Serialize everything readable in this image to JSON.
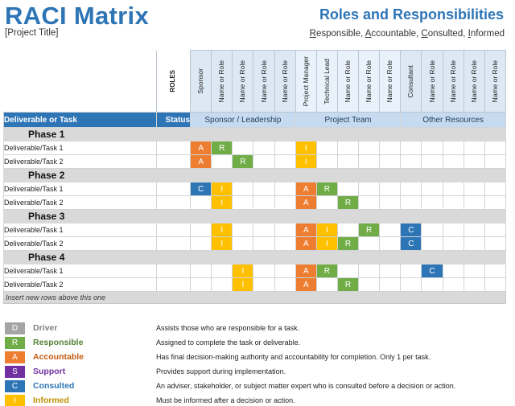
{
  "header": {
    "title": "RACI Matrix",
    "project": "[Project Title]",
    "subtitle": "Roles and Responsibilities",
    "letters": [
      {
        "first": "R",
        "rest": "esponsible, "
      },
      {
        "first": "A",
        "rest": "ccountable, "
      },
      {
        "first": "C",
        "rest": "onsulted, "
      },
      {
        "first": "I",
        "rest": "nformed"
      }
    ]
  },
  "table": {
    "roles_label": "ROLES",
    "roles": [
      "Sponsor",
      "Name or Role",
      "Name or Role",
      "Name or Role",
      "Name or Role",
      "Project Manager",
      "Technical Lead",
      "Name or Role",
      "Name or Role",
      "Name or Role",
      "Consultant",
      "Name or Role",
      "Name or Role",
      "Name or Role",
      "Name or Role"
    ],
    "deliverable_label": "Deliverable or Task",
    "status_label": "Status",
    "groups": [
      "Sponsor / Leadership",
      "Project Team",
      "Other Resources"
    ],
    "phases": [
      {
        "name": "Phase 1",
        "tasks": [
          {
            "label": "Deliverable/Task 1",
            "cells": [
              "A",
              "R",
              "",
              "",
              "",
              "I",
              "",
              "",
              "",
              "",
              "",
              "",
              "",
              "",
              ""
            ]
          },
          {
            "label": "Deliverable/Task 2",
            "cells": [
              "A",
              "",
              "R",
              "",
              "",
              "I",
              "",
              "",
              "",
              "",
              "",
              "",
              "",
              "",
              ""
            ]
          }
        ]
      },
      {
        "name": "Phase 2",
        "tasks": [
          {
            "label": "Deliverable/Task 1",
            "cells": [
              "C",
              "I",
              "",
              "",
              "",
              "A",
              "R",
              "",
              "",
              "",
              "",
              "",
              "",
              "",
              ""
            ]
          },
          {
            "label": "Deliverable/Task 2",
            "cells": [
              "",
              "I",
              "",
              "",
              "",
              "A",
              "",
              "R",
              "",
              "",
              "",
              "",
              "",
              "",
              ""
            ]
          }
        ]
      },
      {
        "name": "Phase 3",
        "tasks": [
          {
            "label": "Deliverable/Task 1",
            "cells": [
              "",
              "I",
              "",
              "",
              "",
              "A",
              "I",
              "",
              "R",
              "",
              "C",
              "",
              "",
              "",
              ""
            ]
          },
          {
            "label": "Deliverable/Task 2",
            "cells": [
              "",
              "I",
              "",
              "",
              "",
              "A",
              "I",
              "R",
              "",
              "",
              "C",
              "",
              "",
              "",
              ""
            ]
          }
        ]
      },
      {
        "name": "Phase 4",
        "tasks": [
          {
            "label": "Deliverable/Task 1",
            "cells": [
              "",
              "",
              "I",
              "",
              "",
              "A",
              "R",
              "",
              "",
              "",
              "",
              "C",
              "",
              "",
              ""
            ]
          },
          {
            "label": "Deliverable/Task 2",
            "cells": [
              "",
              "",
              "I",
              "",
              "",
              "A",
              "",
              "R",
              "",
              "",
              "",
              "",
              "",
              "",
              ""
            ]
          }
        ]
      }
    ],
    "insert_note": "Insert new rows above this one"
  },
  "legend": [
    {
      "letter": "D",
      "name": "Driver",
      "desc": "Assists those who are responsible for a task.",
      "color": "#a5a5a5",
      "text_color": "#7f7f7f"
    },
    {
      "letter": "R",
      "name": "Responsible",
      "desc": "Assigned to complete the task or deliverable.",
      "color": "#70ad47",
      "text_color": "#538135"
    },
    {
      "letter": "A",
      "name": "Accountable",
      "desc": "Has final decision-making authority and accountability for completion. Only 1 per task.",
      "color": "#ed7d31",
      "text_color": "#c55a11"
    },
    {
      "letter": "S",
      "name": "Support",
      "desc": "Provides support during implementation.",
      "color": "#7030a0",
      "text_color": "#7030a0"
    },
    {
      "letter": "C",
      "name": "Consulted",
      "desc": "An adviser, stakeholder, or subject matter expert who is consulted before a decision or action.",
      "color": "#2e75b6",
      "text_color": "#2e75b6"
    },
    {
      "letter": "I",
      "name": "Informed",
      "desc": "Must be informed after a decision or action.",
      "color": "#ffc000",
      "text_color": "#bf9000"
    }
  ]
}
